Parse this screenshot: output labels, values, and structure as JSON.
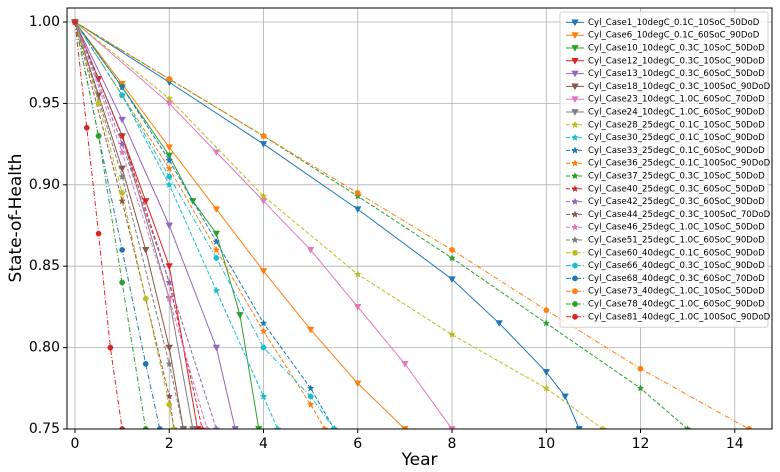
{
  "chart_data": {
    "type": "line",
    "x_label": "Year",
    "y_label": "State-of-Health",
    "xlim": [
      -0.17,
      14.79
    ],
    "ylim": [
      0.75,
      1.0086
    ],
    "xticks": [
      0,
      2,
      4,
      6,
      8,
      10,
      12,
      14
    ],
    "yticks": [
      0.75,
      {
        "value": 0.8,
        "label": "0.80"
      },
      0.85,
      {
        "value": 0.9,
        "label": "0.90"
      },
      0.95,
      {
        "value": 1.0,
        "label": "1.00"
      }
    ],
    "grid": true,
    "legend": "upper right",
    "series": [
      {
        "name": "Cyl_Case1_10degC_0.1C_10SoC_50DoD",
        "color": "#1f77b4",
        "marker": "triangle-down",
        "dash": "solid",
        "x": [
          0,
          2,
          4,
          6,
          8,
          9,
          10,
          10.4,
          10.7
        ],
        "values": [
          1,
          0.963,
          0.925,
          0.885,
          0.842,
          0.815,
          0.785,
          0.77,
          0.75
        ]
      },
      {
        "name": "Cyl_Case6_10degC_0.1C_60SoC_90DoD",
        "color": "#ff7f0e",
        "marker": "triangle-down",
        "dash": "solid",
        "x": [
          0,
          1,
          2,
          3,
          4,
          5,
          6,
          7
        ],
        "values": [
          1,
          0.962,
          0.923,
          0.885,
          0.847,
          0.811,
          0.778,
          0.75
        ]
      },
      {
        "name": "Cyl_Case10_10degC_0.3C_10SoC_50DoD",
        "color": "#2ca02c",
        "marker": "triangle-down",
        "dash": "solid",
        "x": [
          0,
          1,
          2,
          2.5,
          3,
          3.5,
          3.9
        ],
        "values": [
          1,
          0.96,
          0.918,
          0.89,
          0.87,
          0.82,
          0.75
        ]
      },
      {
        "name": "Cyl_Case12_10degC_0.3C_10SoC_90DoD",
        "color": "#d62728",
        "marker": "triangle-down",
        "dash": "solid",
        "x": [
          0,
          0.5,
          1,
          1.5,
          2,
          2.6
        ],
        "values": [
          1,
          0.965,
          0.93,
          0.89,
          0.85,
          0.75
        ]
      },
      {
        "name": "Cyl_Case13_10degC_0.3C_60SoC_50DoD",
        "color": "#9467bd",
        "marker": "triangle-down",
        "dash": "solid",
        "x": [
          0,
          1,
          2,
          3,
          3.4
        ],
        "values": [
          1,
          0.94,
          0.875,
          0.8,
          0.75
        ]
      },
      {
        "name": "Cyl_Case18_10degC_0.3C_100SoC_90DoD",
        "color": "#8c564b",
        "marker": "triangle-down",
        "dash": "solid",
        "x": [
          0,
          0.5,
          1,
          1.5,
          2,
          2.3
        ],
        "values": [
          1,
          0.955,
          0.91,
          0.86,
          0.8,
          0.75
        ]
      },
      {
        "name": "Cyl_Case23_10degC_1.0C_60SoC_70DoD",
        "color": "#e377c2",
        "marker": "triangle-down",
        "dash": "solid",
        "x": [
          0,
          2,
          3,
          4,
          5,
          6,
          7,
          8
        ],
        "values": [
          1,
          0.95,
          0.92,
          0.89,
          0.86,
          0.825,
          0.79,
          0.75
        ]
      },
      {
        "name": "Cyl_Case24_10degC_1.0C_60SoC_90DoD",
        "color": "#7f7f7f",
        "marker": "triangle-down",
        "dash": "solid",
        "x": [
          0,
          1,
          2,
          2.5
        ],
        "values": [
          1,
          0.93,
          0.83,
          0.75
        ]
      },
      {
        "name": "Cyl_Case28_25degC_0.1C_10SoC_50DoD",
        "color": "#bcbd22",
        "marker": "star",
        "dash": "dashed",
        "x": [
          0,
          2,
          4,
          6,
          8,
          10,
          11.2
        ],
        "values": [
          1,
          0.953,
          0.893,
          0.845,
          0.808,
          0.775,
          0.75
        ]
      },
      {
        "name": "Cyl_Case30_25degC_0.1C_10SoC_90DoD",
        "color": "#17becf",
        "marker": "star",
        "dash": "dashed",
        "x": [
          0,
          1,
          2,
          3,
          4,
          4.3
        ],
        "values": [
          1,
          0.955,
          0.9,
          0.835,
          0.77,
          0.75
        ]
      },
      {
        "name": "Cyl_Case33_25degC_0.1C_60SoC_90DoD",
        "color": "#1f77b4",
        "marker": "star",
        "dash": "dashed",
        "x": [
          0,
          1,
          2,
          3,
          4,
          5,
          5.5
        ],
        "values": [
          1,
          0.96,
          0.915,
          0.865,
          0.815,
          0.775,
          0.75
        ]
      },
      {
        "name": "Cyl_Case36_25degC_0.1C_100SoC_90DoD",
        "color": "#ff7f0e",
        "marker": "star",
        "dash": "dashed",
        "x": [
          0,
          1,
          2,
          3,
          4,
          5,
          5.3
        ],
        "values": [
          1,
          0.955,
          0.91,
          0.86,
          0.81,
          0.765,
          0.75
        ]
      },
      {
        "name": "Cyl_Case37_25degC_0.3C_10SoC_50DoD",
        "color": "#2ca02c",
        "marker": "star",
        "dash": "dashed",
        "x": [
          0,
          2,
          4,
          6,
          8,
          10,
          12,
          13
        ],
        "values": [
          1,
          0.965,
          0.93,
          0.893,
          0.855,
          0.815,
          0.775,
          0.75
        ]
      },
      {
        "name": "Cyl_Case40_25degC_0.3C_60SoC_50DoD",
        "color": "#d62728",
        "marker": "star",
        "dash": "dashed",
        "x": [
          0,
          1,
          2,
          2.7
        ],
        "values": [
          1,
          0.93,
          0.84,
          0.75
        ]
      },
      {
        "name": "Cyl_Case42_25degC_0.3C_60SoC_90DoD",
        "color": "#9467bd",
        "marker": "star",
        "dash": "dashed",
        "x": [
          0,
          1,
          2,
          3
        ],
        "values": [
          1,
          0.925,
          0.84,
          0.75
        ]
      },
      {
        "name": "Cyl_Case44_25degC_0.3C_100SoC_70DoD",
        "color": "#8c564b",
        "marker": "star",
        "dash": "dashed",
        "x": [
          0,
          1,
          2,
          2.1
        ],
        "values": [
          1,
          0.89,
          0.77,
          0.75
        ]
      },
      {
        "name": "Cyl_Case46_25degC_1.0C_10SoC_50DoD",
        "color": "#e377c2",
        "marker": "star",
        "dash": "dashed",
        "x": [
          0,
          1,
          2,
          2.8
        ],
        "values": [
          1,
          0.92,
          0.83,
          0.75
        ]
      },
      {
        "name": "Cyl_Case51_25degC_1.0C_60SoC_90DoD",
        "color": "#7f7f7f",
        "marker": "star",
        "dash": "dashed",
        "x": [
          0,
          1,
          2,
          2.3
        ],
        "values": [
          1,
          0.905,
          0.79,
          0.75
        ]
      },
      {
        "name": "Cyl_Case60_40degC_0.1C_60SoC_90DoD",
        "color": "#bcbd22",
        "marker": "circle",
        "dash": "dashdot",
        "x": [
          0,
          0.5,
          1,
          1.5,
          2,
          2.1
        ],
        "values": [
          1,
          0.95,
          0.895,
          0.83,
          0.765,
          0.75
        ]
      },
      {
        "name": "Cyl_Case66_40degC_0.3C_10SoC_90DoD",
        "color": "#17becf",
        "marker": "circle",
        "dash": "dashdot",
        "x": [
          0,
          1,
          2,
          3,
          4,
          5,
          5.5
        ],
        "values": [
          1,
          0.955,
          0.905,
          0.855,
          0.8,
          0.77,
          0.75
        ]
      },
      {
        "name": "Cyl_Case68_40degC_0.3C_60SoC_70DoD",
        "color": "#1f77b4",
        "marker": "circle",
        "dash": "dashdot",
        "x": [
          0,
          0.5,
          1,
          1.5,
          1.8
        ],
        "values": [
          1,
          0.93,
          0.86,
          0.79,
          0.75
        ]
      },
      {
        "name": "Cyl_Case73_40degC_1.0C_10SoC_50DoD",
        "color": "#ff7f0e",
        "marker": "circle",
        "dash": "dashdot",
        "x": [
          0,
          2,
          4,
          6,
          8,
          10,
          12,
          14.3
        ],
        "values": [
          1,
          0.965,
          0.93,
          0.895,
          0.86,
          0.823,
          0.787,
          0.75
        ]
      },
      {
        "name": "Cyl_Case78_40degC_1.0C_60SoC_90DoD",
        "color": "#2ca02c",
        "marker": "circle",
        "dash": "dashdot",
        "x": [
          0,
          0.5,
          1,
          1.5
        ],
        "values": [
          1,
          0.93,
          0.84,
          0.75
        ]
      },
      {
        "name": "Cyl_Case81_40degC_1.0C_100SoC_90DoD",
        "color": "#d62728",
        "marker": "circle",
        "dash": "dashdot",
        "x": [
          0,
          0.25,
          0.5,
          0.75,
          1
        ],
        "values": [
          1,
          0.935,
          0.87,
          0.8,
          0.75
        ]
      }
    ]
  }
}
